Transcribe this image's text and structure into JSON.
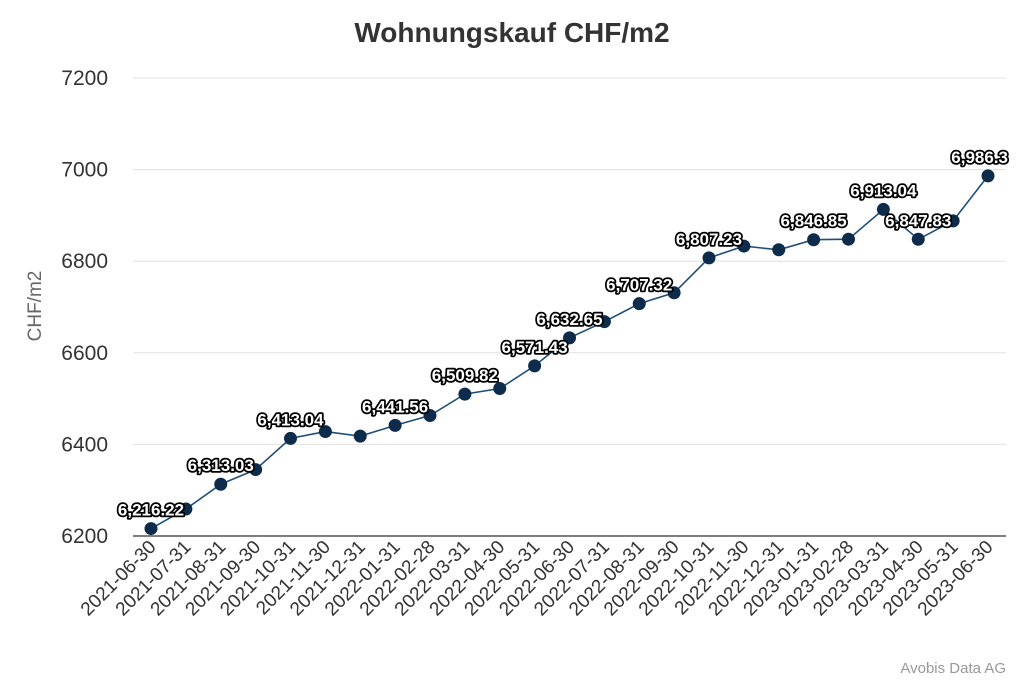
{
  "chart_data": {
    "type": "line",
    "title": "Wohnungskauf CHF/m2",
    "ylabel": "CHF/m2",
    "xlabel": "",
    "ylim": [
      6200,
      7200
    ],
    "yticks": [
      "6200",
      "6400",
      "6600",
      "6800",
      "7000",
      "7200"
    ],
    "grid": true,
    "legend": "none",
    "colors": {
      "line": "#1f4e79",
      "marker": "#0d2b4a",
      "grid": "#e0e0e0"
    },
    "categories": [
      "2021-06-30",
      "2021-07-31",
      "2021-08-31",
      "2021-09-30",
      "2021-10-31",
      "2021-11-30",
      "2021-12-31",
      "2022-01-31",
      "2022-02-28",
      "2022-03-31",
      "2022-04-30",
      "2022-05-31",
      "2022-06-30",
      "2022-07-31",
      "2022-08-31",
      "2022-09-30",
      "2022-10-31",
      "2022-11-30",
      "2022-12-31",
      "2023-01-31",
      "2023-02-28",
      "2023-03-31",
      "2023-04-30",
      "2023-05-31",
      "2023-06-30"
    ],
    "series": [
      {
        "values": [
          6216.22,
          6259,
          6313.03,
          6345,
          6413.04,
          6428,
          6418,
          6441.56,
          6463,
          6509.82,
          6522,
          6571.43,
          6632.65,
          6668,
          6707.32,
          6731,
          6807.23,
          6833,
          6825,
          6846.85,
          6848,
          6913.04,
          6847.83,
          6888,
          6986.3
        ]
      }
    ],
    "data_labels": [
      {
        "index": 0,
        "text": "6,216.22"
      },
      {
        "index": 2,
        "text": "6,313.03"
      },
      {
        "index": 4,
        "text": "6,413.04"
      },
      {
        "index": 7,
        "text": "6,441.56"
      },
      {
        "index": 9,
        "text": "6,509.82"
      },
      {
        "index": 11,
        "text": "6,571.43"
      },
      {
        "index": 12,
        "text": "6,632.65"
      },
      {
        "index": 14,
        "text": "6,707.32"
      },
      {
        "index": 16,
        "text": "6,807.23"
      },
      {
        "index": 19,
        "text": "6,846.85"
      },
      {
        "index": 21,
        "text": "6,913.04"
      },
      {
        "index": 22,
        "text": "6,847.83"
      },
      {
        "index": 24,
        "text": "6,986.3"
      }
    ],
    "credit": "Avobis Data AG"
  }
}
